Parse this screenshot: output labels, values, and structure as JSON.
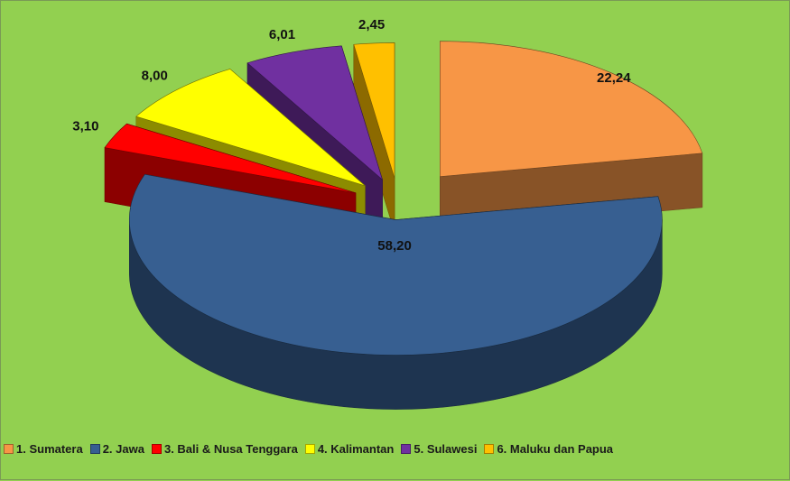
{
  "chart_data": {
    "type": "pie",
    "title": "",
    "three_d": true,
    "exploded": true,
    "categories": [
      "1. Sumatera",
      "2. Jawa",
      "3. Bali & Nusa Tenggara",
      "4. Kalimantan",
      "5. Sulawesi",
      "6. Maluku dan Papua"
    ],
    "values": [
      22.24,
      58.2,
      3.1,
      8.0,
      6.01,
      2.45
    ],
    "data_labels": [
      "22,24",
      "58,20",
      "3,10",
      "8,00",
      "6,01",
      "2,45"
    ],
    "colors": [
      "#f79646",
      "#375f91",
      "#ff0000",
      "#ffff00",
      "#7030a0",
      "#ffc000"
    ],
    "legend_position": "bottom",
    "background_color": "#92d050"
  }
}
